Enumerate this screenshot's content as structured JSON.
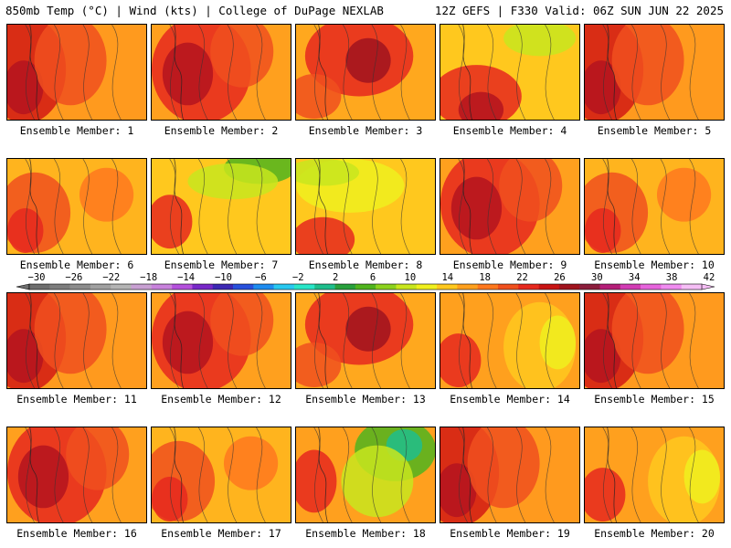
{
  "header": {
    "left": "850mb Temp (°C) | Wind (kts) | College of DuPage NEXLAB",
    "right": "12Z GEFS | F330 Valid: 06Z SUN JUN 22 2025"
  },
  "colorbar": {
    "labels": [
      "-30",
      "-26",
      "-22",
      "-18",
      "-14",
      "-10",
      "-6",
      "-2",
      "2",
      "6",
      "10",
      "14",
      "18",
      "22",
      "26",
      "30",
      "34",
      "38",
      "42"
    ],
    "colors": [
      "#6e6e6e",
      "#7d7d7d",
      "#8c8c8c",
      "#a0a0a0",
      "#b4b4b4",
      "#c8a0d2",
      "#c882dc",
      "#b450dc",
      "#7828c8",
      "#3c28b4",
      "#2850dc",
      "#1e8cf0",
      "#28c8f0",
      "#28e6c8",
      "#1ebe8c",
      "#28a03c",
      "#50b41e",
      "#8cd21e",
      "#c8e61e",
      "#f0f01e",
      "#ffc81e",
      "#ffa01e",
      "#ff781e",
      "#f0501e",
      "#e6281e",
      "#c81414",
      "#a0141e",
      "#8c1e3c",
      "#b41e78",
      "#d23cb4",
      "#e664dc",
      "#f08cf0",
      "#f5bef5"
    ]
  },
  "panels": [
    {
      "label": "Ensemble Member: 1",
      "profile": "hot-west"
    },
    {
      "label": "Ensemble Member: 2",
      "profile": "hot-center"
    },
    {
      "label": "Ensemble Member: 3",
      "profile": "hot-north"
    },
    {
      "label": "Ensemble Member: 4",
      "profile": "hot-south"
    },
    {
      "label": "Ensemble Member: 5",
      "profile": "hot-west"
    },
    {
      "label": "Ensemble Member: 6",
      "profile": "mild"
    },
    {
      "label": "Ensemble Member: 7",
      "profile": "cool-north"
    },
    {
      "label": "Ensemble Member: 8",
      "profile": "mild-cool"
    },
    {
      "label": "Ensemble Member: 9",
      "profile": "hot-center"
    },
    {
      "label": "Ensemble Member: 10",
      "profile": "mild"
    },
    {
      "label": "Ensemble Member: 11",
      "profile": "hot-west"
    },
    {
      "label": "Ensemble Member: 12",
      "profile": "hot-center"
    },
    {
      "label": "Ensemble Member: 13",
      "profile": "hot-north"
    },
    {
      "label": "Ensemble Member: 14",
      "profile": "ridge-east"
    },
    {
      "label": "Ensemble Member: 15",
      "profile": "hot-west"
    },
    {
      "label": "Ensemble Member: 16",
      "profile": "hot-center"
    },
    {
      "label": "Ensemble Member: 17",
      "profile": "mild"
    },
    {
      "label": "Ensemble Member: 18",
      "profile": "cool-east"
    },
    {
      "label": "Ensemble Member: 19",
      "profile": "hot-west"
    },
    {
      "label": "Ensemble Member: 20",
      "profile": "ridge-east"
    }
  ]
}
